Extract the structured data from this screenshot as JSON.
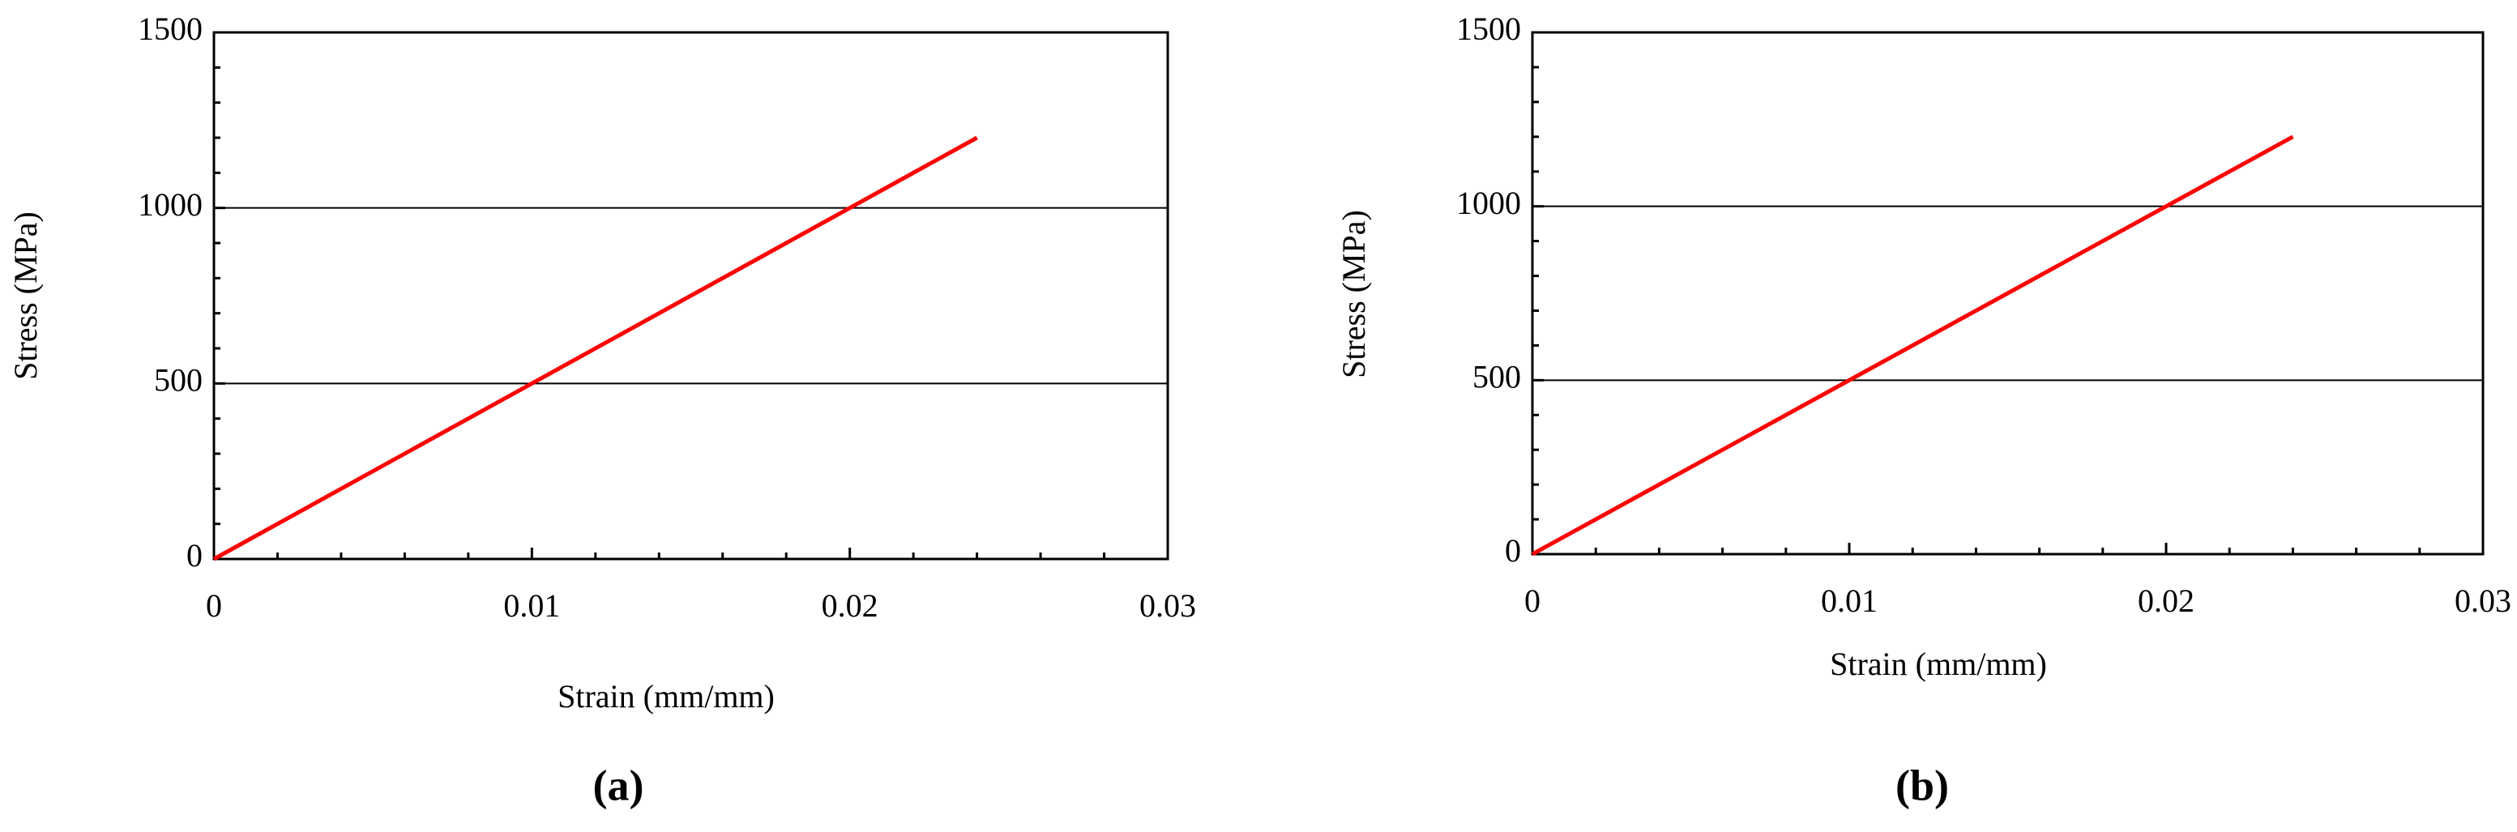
{
  "chart_data": [
    {
      "type": "line",
      "x_label": "Strain (mm/mm)",
      "y_label": "Stress (MPa)",
      "caption": "(a)",
      "x": [
        0,
        0.024
      ],
      "series": [
        {
          "color": "#ff0000",
          "values": [
            0,
            1200
          ]
        }
      ],
      "xlim": [
        0,
        0.03
      ],
      "xticks": [
        0,
        0.01,
        0.02,
        0.03
      ],
      "ylim": [
        0,
        1500
      ],
      "yticks": [
        0,
        500,
        1000,
        1500
      ],
      "grid": true
    },
    {
      "type": "line",
      "x_label": "Strain (mm/mm)",
      "y_label": "Stress (MPa)",
      "caption": "(b)",
      "x": [
        0,
        0.024
      ],
      "series": [
        {
          "color": "#ff0000",
          "values": [
            0,
            1200
          ]
        }
      ],
      "xlim": [
        0,
        0.03
      ],
      "xticks": [
        0,
        0.01,
        0.02,
        0.03
      ],
      "ylim": [
        0,
        1500
      ],
      "yticks": [
        0,
        500,
        1000,
        1500
      ],
      "grid": true
    }
  ]
}
